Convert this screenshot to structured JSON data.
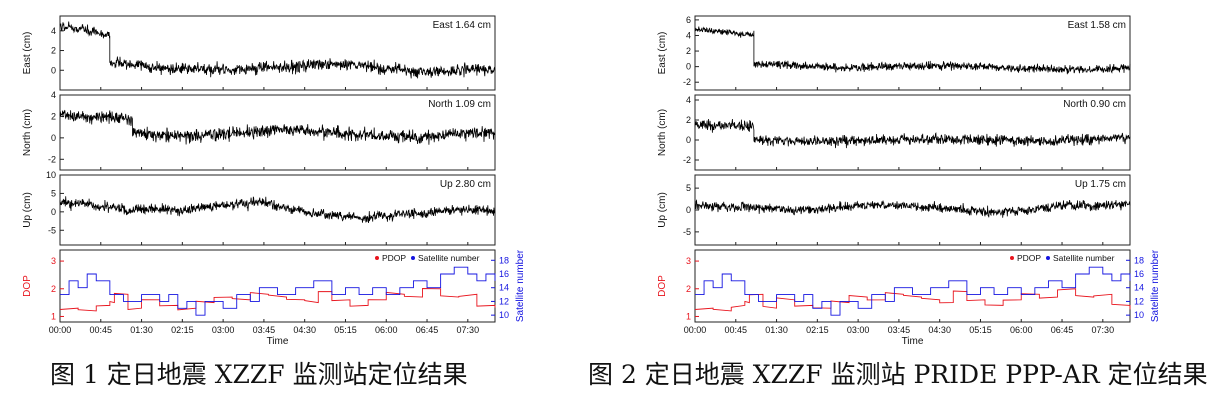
{
  "figures": [
    {
      "caption": "图 1 定日地震 XZZF 监测站定位结果",
      "time_label": "Time",
      "time_ticks": [
        "00:00",
        "00:45",
        "01:30",
        "02:15",
        "03:00",
        "03:45",
        "04:30",
        "05:15",
        "06:00",
        "06:45",
        "07:30"
      ],
      "panels": [
        {
          "ylabel": "East (cm)",
          "annotation": "East 1.64 cm",
          "yticks": [
            "4",
            "2",
            "0"
          ],
          "ylim": [
            -2,
            5.5
          ],
          "segments": [
            {
              "t": [
                0,
                55
              ],
              "start": 4.5,
              "end": 3.2,
              "noise": 0.7
            },
            {
              "t": [
                55,
                480
              ],
              "start": 0.4,
              "end": 0.0,
              "noise": 0.9
            }
          ],
          "wander": 0.6
        },
        {
          "ylabel": "North (cm)",
          "annotation": "North 1.09 cm",
          "yticks": [
            "4",
            "2",
            "0",
            "-2"
          ],
          "ylim": [
            -3,
            4
          ],
          "segments": [
            {
              "t": [
                0,
                80
              ],
              "start": 2.0,
              "end": 1.6,
              "noise": 0.9
            },
            {
              "t": [
                80,
                480
              ],
              "start": 0.5,
              "end": 0.2,
              "noise": 0.9
            }
          ],
          "wander": 0.5
        },
        {
          "ylabel": "Up (cm)",
          "annotation": "Up 2.80 cm",
          "yticks": [
            "10",
            "5",
            "0",
            "-5"
          ],
          "ylim": [
            -9,
            10
          ],
          "segments": [
            {
              "t": [
                0,
                480
              ],
              "start": 2.0,
              "end": -1.0,
              "noise": 2.0
            }
          ],
          "wander": 2.6
        }
      ],
      "dop_panel": {
        "ylabel_left": "DOP",
        "ylabel_right": "Satellite number",
        "yticks_left": [
          "3",
          "2",
          "1"
        ],
        "yticks_right": [
          "18",
          "16",
          "14",
          "12",
          "10"
        ],
        "legend": [
          {
            "label": "PDOP",
            "color": "#e8141d"
          },
          {
            "label": "Satellite number",
            "color": "#1414e0"
          }
        ],
        "pdop_range": [
          0.8,
          3.4
        ],
        "sat_range": [
          9,
          19.5
        ],
        "pdop": [
          [
            0,
            1.3
          ],
          [
            20,
            1.2
          ],
          [
            40,
            1.4
          ],
          [
            55,
            1.5
          ],
          [
            60,
            1.8
          ],
          [
            75,
            1.3
          ],
          [
            90,
            1.6
          ],
          [
            110,
            1.4
          ],
          [
            130,
            1.3
          ],
          [
            150,
            1.5
          ],
          [
            170,
            1.7
          ],
          [
            190,
            1.6
          ],
          [
            210,
            1.8
          ],
          [
            230,
            1.7
          ],
          [
            250,
            1.6
          ],
          [
            270,
            1.5
          ],
          [
            285,
            1.9
          ],
          [
            300,
            1.6
          ],
          [
            320,
            1.4
          ],
          [
            340,
            1.6
          ],
          [
            360,
            1.8
          ],
          [
            380,
            1.7
          ],
          [
            400,
            2.0
          ],
          [
            420,
            1.7
          ],
          [
            440,
            1.8
          ],
          [
            460,
            1.4
          ],
          [
            480,
            1.3
          ]
        ],
        "sat": [
          [
            0,
            13
          ],
          [
            10,
            15
          ],
          [
            20,
            14
          ],
          [
            30,
            16
          ],
          [
            40,
            15
          ],
          [
            55,
            13
          ],
          [
            70,
            12
          ],
          [
            90,
            13
          ],
          [
            110,
            12
          ],
          [
            120,
            13
          ],
          [
            130,
            11
          ],
          [
            140,
            12
          ],
          [
            150,
            10
          ],
          [
            160,
            12
          ],
          [
            180,
            11
          ],
          [
            195,
            13
          ],
          [
            210,
            12
          ],
          [
            220,
            14
          ],
          [
            240,
            13
          ],
          [
            260,
            14
          ],
          [
            280,
            15
          ],
          [
            300,
            13
          ],
          [
            315,
            14
          ],
          [
            330,
            13
          ],
          [
            345,
            14
          ],
          [
            360,
            13
          ],
          [
            375,
            14
          ],
          [
            390,
            15
          ],
          [
            405,
            14
          ],
          [
            420,
            16
          ],
          [
            435,
            17
          ],
          [
            450,
            16
          ],
          [
            460,
            15
          ],
          [
            470,
            16
          ],
          [
            480,
            15
          ]
        ]
      }
    },
    {
      "caption": "图 2 定日地震 XZZF 监测站 PRIDE PPP-AR 定位结果",
      "time_label": "Time",
      "time_ticks": [
        "00:00",
        "00:45",
        "01:30",
        "02:15",
        "03:00",
        "03:45",
        "04:30",
        "05:15",
        "06:00",
        "06:45",
        "07:30"
      ],
      "panels": [
        {
          "ylabel": "East (cm)",
          "annotation": "East 1.58 cm",
          "yticks": [
            "6",
            "4",
            "2",
            "0",
            "-2"
          ],
          "ylim": [
            -3,
            6.5
          ],
          "segments": [
            {
              "t": [
                0,
                65
              ],
              "start": 4.8,
              "end": 4.0,
              "noise": 0.6
            },
            {
              "t": [
                65,
                480
              ],
              "start": 0.2,
              "end": -0.3,
              "noise": 0.8
            }
          ],
          "wander": 0.3
        },
        {
          "ylabel": "North (cm)",
          "annotation": "North 0.90 cm",
          "yticks": [
            "4",
            "2",
            "0",
            "-2"
          ],
          "ylim": [
            -3,
            4.5
          ],
          "segments": [
            {
              "t": [
                0,
                65
              ],
              "start": 1.3,
              "end": 1.3,
              "noise": 0.8
            },
            {
              "t": [
                65,
                480
              ],
              "start": 0.0,
              "end": 0.0,
              "noise": 0.8
            }
          ],
          "wander": 0.3
        },
        {
          "ylabel": "Up (cm)",
          "annotation": "Up 1.75 cm",
          "yticks": [
            "5",
            "0",
            "-5"
          ],
          "ylim": [
            -8,
            8
          ],
          "segments": [
            {
              "t": [
                0,
                480
              ],
              "start": 0.5,
              "end": 0.5,
              "noise": 1.6
            }
          ],
          "wander": 1.2
        }
      ],
      "dop_panel": {
        "ylabel_left": "DOP",
        "ylabel_right": "Satellite number",
        "yticks_left": [
          "3",
          "2",
          "1"
        ],
        "yticks_right": [
          "18",
          "16",
          "14",
          "12",
          "10"
        ],
        "legend": [
          {
            "label": "PDOP",
            "color": "#e8141d"
          },
          {
            "label": "Satellite number",
            "color": "#1414e0"
          }
        ],
        "pdop_range": [
          0.8,
          3.4
        ],
        "sat_range": [
          9,
          19.5
        ],
        "pdop": [
          [
            0,
            1.3
          ],
          [
            20,
            1.2
          ],
          [
            40,
            1.4
          ],
          [
            55,
            1.5
          ],
          [
            60,
            1.8
          ],
          [
            75,
            1.3
          ],
          [
            90,
            1.6
          ],
          [
            110,
            1.4
          ],
          [
            130,
            1.3
          ],
          [
            150,
            1.5
          ],
          [
            170,
            1.7
          ],
          [
            190,
            1.6
          ],
          [
            210,
            1.8
          ],
          [
            230,
            1.7
          ],
          [
            250,
            1.6
          ],
          [
            270,
            1.5
          ],
          [
            285,
            1.9
          ],
          [
            300,
            1.6
          ],
          [
            320,
            1.4
          ],
          [
            340,
            1.6
          ],
          [
            360,
            1.8
          ],
          [
            380,
            1.7
          ],
          [
            400,
            2.0
          ],
          [
            420,
            1.7
          ],
          [
            440,
            1.8
          ],
          [
            460,
            1.4
          ],
          [
            480,
            1.3
          ]
        ],
        "sat": [
          [
            0,
            13
          ],
          [
            10,
            15
          ],
          [
            20,
            14
          ],
          [
            30,
            16
          ],
          [
            40,
            15
          ],
          [
            55,
            13
          ],
          [
            70,
            12
          ],
          [
            90,
            13
          ],
          [
            110,
            12
          ],
          [
            120,
            13
          ],
          [
            130,
            11
          ],
          [
            140,
            12
          ],
          [
            150,
            10
          ],
          [
            160,
            12
          ],
          [
            180,
            11
          ],
          [
            195,
            13
          ],
          [
            210,
            12
          ],
          [
            220,
            14
          ],
          [
            240,
            13
          ],
          [
            260,
            14
          ],
          [
            280,
            15
          ],
          [
            300,
            13
          ],
          [
            315,
            14
          ],
          [
            330,
            13
          ],
          [
            345,
            14
          ],
          [
            360,
            13
          ],
          [
            375,
            14
          ],
          [
            390,
            15
          ],
          [
            405,
            14
          ],
          [
            420,
            16
          ],
          [
            435,
            17
          ],
          [
            450,
            16
          ],
          [
            460,
            15
          ],
          [
            470,
            16
          ],
          [
            480,
            15
          ]
        ]
      }
    }
  ],
  "chart_data": [
    {
      "type": "line",
      "title": "",
      "xlabel": "Time",
      "x_ticks": [
        "00:00",
        "00:45",
        "01:30",
        "02:15",
        "03:00",
        "03:45",
        "04:30",
        "05:15",
        "06:00",
        "06:45",
        "07:30"
      ],
      "panels": [
        {
          "ylabel": "East (cm)",
          "rms_label": "East 1.64 cm",
          "ylim": [
            -2,
            5.5
          ]
        },
        {
          "ylabel": "North (cm)",
          "rms_label": "North 1.09 cm",
          "ylim": [
            -3,
            4
          ]
        },
        {
          "ylabel": "Up (cm)",
          "rms_label": "Up 2.80 cm",
          "ylim": [
            -9,
            10
          ]
        }
      ],
      "series": [
        {
          "name": "PDOP",
          "color": "#e8141d"
        },
        {
          "name": "Satellite number",
          "color": "#1414e0"
        }
      ]
    },
    {
      "type": "line",
      "title": "",
      "xlabel": "Time",
      "x_ticks": [
        "00:00",
        "00:45",
        "01:30",
        "02:15",
        "03:00",
        "03:45",
        "04:30",
        "05:15",
        "06:00",
        "06:45",
        "07:30"
      ],
      "panels": [
        {
          "ylabel": "East (cm)",
          "rms_label": "East 1.58 cm",
          "ylim": [
            -3,
            6.5
          ]
        },
        {
          "ylabel": "North (cm)",
          "rms_label": "North 0.90 cm",
          "ylim": [
            -3,
            4.5
          ]
        },
        {
          "ylabel": "Up (cm)",
          "rms_label": "Up 1.75 cm",
          "ylim": [
            -8,
            8
          ]
        }
      ],
      "series": [
        {
          "name": "PDOP",
          "color": "#e8141d"
        },
        {
          "name": "Satellite number",
          "color": "#1414e0"
        }
      ]
    }
  ]
}
